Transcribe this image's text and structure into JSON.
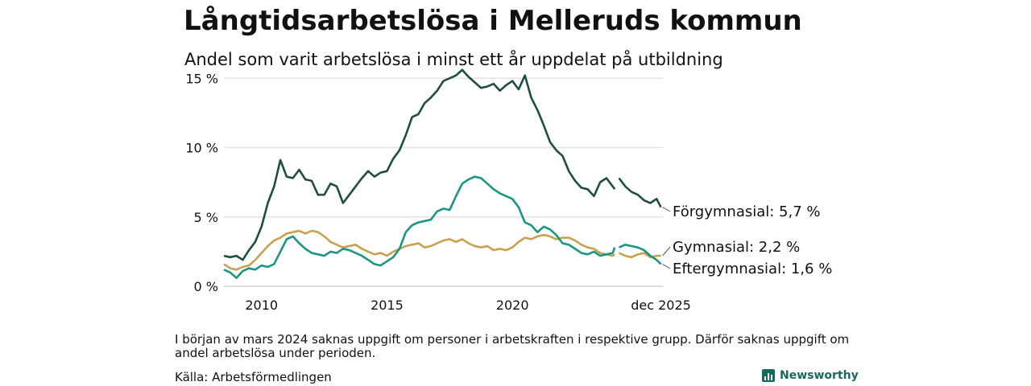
{
  "header": {
    "title": "Långtidsarbetslösa i Melleruds kommun",
    "subtitle": "Andel som varit arbetslösa i minst ett år uppdelat på utbildning"
  },
  "footer": {
    "note": "I början av mars 2024 saknas uppgift om personer i arbetskraften i respektive grupp. Därför saknas uppgift om andel arbetslösa under perioden.",
    "source": "Källa: Arbetsförmedlingen",
    "brand": "Newsworthy"
  },
  "chart_data": {
    "type": "line",
    "title": "Långtidsarbetslösa i Melleruds kommun",
    "ylabel": "",
    "xlabel": "",
    "xlim": [
      2008.5,
      2026.0
    ],
    "ylim": [
      0,
      16
    ],
    "yticks": [
      0,
      5,
      10,
      15
    ],
    "ytick_labels": [
      "0 %",
      "5 %",
      "10 %",
      "15 %"
    ],
    "xticks": [
      2010,
      2015,
      2020,
      2025.92
    ],
    "xtick_labels": [
      "2010",
      "2015",
      "2020",
      "dec 2025"
    ],
    "grid": true,
    "gap": [
      2024.08,
      2024.25
    ],
    "series": [
      {
        "name": "Förgymnasial",
        "end_label": "Förgymnasial: 5,7 %",
        "color": "#1e4d45",
        "x": [
          2008.5,
          2008.75,
          2009.0,
          2009.25,
          2009.5,
          2009.75,
          2010.0,
          2010.25,
          2010.5,
          2010.75,
          2011.0,
          2011.25,
          2011.5,
          2011.75,
          2012.0,
          2012.25,
          2012.5,
          2012.75,
          2013.0,
          2013.25,
          2013.5,
          2013.75,
          2014.0,
          2014.25,
          2014.5,
          2014.75,
          2015.0,
          2015.25,
          2015.5,
          2015.75,
          2016.0,
          2016.25,
          2016.5,
          2016.75,
          2017.0,
          2017.25,
          2017.5,
          2017.75,
          2018.0,
          2018.25,
          2018.5,
          2018.75,
          2019.0,
          2019.25,
          2019.5,
          2019.75,
          2020.0,
          2020.25,
          2020.5,
          2020.75,
          2021.0,
          2021.25,
          2021.5,
          2021.75,
          2022.0,
          2022.25,
          2022.5,
          2022.75,
          2023.0,
          2023.25,
          2023.5,
          2023.75,
          2024.0,
          2024.08,
          2024.25,
          2024.5,
          2024.75,
          2025.0,
          2025.25,
          2025.5,
          2025.75,
          2025.92
        ],
        "values": [
          2.2,
          2.1,
          2.2,
          1.9,
          2.6,
          3.2,
          4.3,
          6.0,
          7.2,
          9.1,
          7.9,
          7.8,
          8.4,
          7.7,
          7.6,
          6.6,
          6.6,
          7.4,
          7.2,
          6.0,
          6.6,
          7.2,
          7.8,
          8.3,
          7.9,
          8.2,
          8.3,
          9.2,
          9.8,
          10.9,
          12.2,
          12.4,
          13.2,
          13.6,
          14.1,
          14.8,
          15.0,
          15.2,
          15.6,
          15.1,
          14.7,
          14.3,
          14.4,
          14.6,
          14.1,
          14.5,
          14.8,
          14.2,
          15.2,
          13.6,
          12.7,
          11.6,
          10.4,
          9.8,
          9.4,
          8.3,
          7.6,
          7.1,
          7.0,
          6.5,
          7.5,
          7.8,
          7.2,
          7.0,
          7.8,
          7.2,
          6.8,
          6.6,
          6.2,
          6.0,
          6.3,
          5.7
        ]
      },
      {
        "name": "Gymnasial",
        "end_label": "Gymnasial: 2,2 %",
        "color": "#c9a04e",
        "x": [
          2008.5,
          2008.75,
          2009.0,
          2009.25,
          2009.5,
          2009.75,
          2010.0,
          2010.25,
          2010.5,
          2010.75,
          2011.0,
          2011.25,
          2011.5,
          2011.75,
          2012.0,
          2012.25,
          2012.5,
          2012.75,
          2013.0,
          2013.25,
          2013.5,
          2013.75,
          2014.0,
          2014.25,
          2014.5,
          2014.75,
          2015.0,
          2015.25,
          2015.5,
          2015.75,
          2016.0,
          2016.25,
          2016.5,
          2016.75,
          2017.0,
          2017.25,
          2017.5,
          2017.75,
          2018.0,
          2018.25,
          2018.5,
          2018.75,
          2019.0,
          2019.25,
          2019.5,
          2019.75,
          2020.0,
          2020.25,
          2020.5,
          2020.75,
          2021.0,
          2021.25,
          2021.5,
          2021.75,
          2022.0,
          2022.25,
          2022.5,
          2022.75,
          2023.0,
          2023.25,
          2023.5,
          2023.75,
          2024.0,
          2024.08,
          2024.25,
          2024.5,
          2024.75,
          2025.0,
          2025.25,
          2025.5,
          2025.75,
          2025.92
        ],
        "values": [
          1.6,
          1.3,
          1.2,
          1.4,
          1.5,
          1.9,
          2.4,
          2.9,
          3.3,
          3.5,
          3.8,
          3.9,
          4.0,
          3.8,
          4.0,
          3.9,
          3.6,
          3.2,
          3.0,
          2.8,
          2.9,
          3.0,
          2.7,
          2.5,
          2.3,
          2.4,
          2.2,
          2.5,
          2.7,
          2.9,
          3.0,
          3.1,
          2.8,
          2.9,
          3.1,
          3.3,
          3.4,
          3.2,
          3.4,
          3.1,
          2.9,
          2.8,
          2.9,
          2.6,
          2.7,
          2.6,
          2.8,
          3.2,
          3.5,
          3.4,
          3.6,
          3.7,
          3.6,
          3.4,
          3.5,
          3.5,
          3.3,
          3.0,
          2.8,
          2.7,
          2.4,
          2.3,
          2.2,
          2.3,
          2.4,
          2.2,
          2.1,
          2.3,
          2.4,
          2.1,
          2.2,
          2.2
        ]
      },
      {
        "name": "Eftergymnasial",
        "end_label": "Eftergymnasial: 1,6 %",
        "color": "#1a9582",
        "x": [
          2008.5,
          2008.75,
          2009.0,
          2009.25,
          2009.5,
          2009.75,
          2010.0,
          2010.25,
          2010.5,
          2010.75,
          2011.0,
          2011.25,
          2011.5,
          2011.75,
          2012.0,
          2012.25,
          2012.5,
          2012.75,
          2013.0,
          2013.25,
          2013.5,
          2013.75,
          2014.0,
          2014.25,
          2014.5,
          2014.75,
          2015.0,
          2015.25,
          2015.5,
          2015.75,
          2016.0,
          2016.25,
          2016.5,
          2016.75,
          2017.0,
          2017.25,
          2017.5,
          2017.75,
          2018.0,
          2018.25,
          2018.5,
          2018.75,
          2019.0,
          2019.25,
          2019.5,
          2019.75,
          2020.0,
          2020.25,
          2020.5,
          2020.75,
          2021.0,
          2021.25,
          2021.5,
          2021.75,
          2022.0,
          2022.25,
          2022.5,
          2022.75,
          2023.0,
          2023.25,
          2023.5,
          2023.75,
          2024.0,
          2024.08,
          2024.25,
          2024.5,
          2024.75,
          2025.0,
          2025.25,
          2025.5,
          2025.75,
          2025.92
        ],
        "values": [
          1.2,
          1.0,
          0.6,
          1.1,
          1.3,
          1.2,
          1.5,
          1.4,
          1.6,
          2.5,
          3.4,
          3.6,
          3.1,
          2.7,
          2.4,
          2.3,
          2.2,
          2.5,
          2.4,
          2.7,
          2.6,
          2.4,
          2.2,
          1.9,
          1.6,
          1.5,
          1.8,
          2.1,
          2.7,
          3.9,
          4.4,
          4.6,
          4.7,
          4.8,
          5.4,
          5.6,
          5.5,
          6.5,
          7.4,
          7.7,
          7.9,
          7.8,
          7.4,
          7.0,
          6.7,
          6.5,
          6.3,
          5.7,
          4.6,
          4.4,
          3.9,
          4.3,
          4.1,
          3.7,
          3.1,
          3.0,
          2.7,
          2.4,
          2.3,
          2.5,
          2.2,
          2.3,
          2.4,
          2.8,
          2.8,
          3.0,
          2.9,
          2.8,
          2.6,
          2.2,
          1.9,
          1.6
        ]
      }
    ]
  }
}
